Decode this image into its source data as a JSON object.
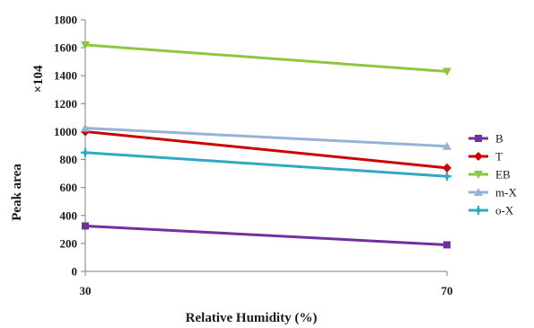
{
  "chart_data": {
    "type": "line",
    "x": [
      30,
      70
    ],
    "x_tick_labels": [
      "30",
      "70"
    ],
    "xlabel": "Relative Humidity (%)",
    "ylabel": "Peak area",
    "y_multiplier_label": "×104",
    "ylim": [
      0,
      1800
    ],
    "y_ticks": [
      0,
      200,
      400,
      600,
      800,
      1000,
      1200,
      1400,
      1600,
      1800
    ],
    "grid": false,
    "legend_position": "right",
    "series": [
      {
        "name": "B",
        "values": [
          325,
          190
        ],
        "color": "#7030a0",
        "marker": "square"
      },
      {
        "name": "T",
        "values": [
          1000,
          740
        ],
        "color": "#cc0000",
        "marker": "diamond"
      },
      {
        "name": "EB",
        "values": [
          1620,
          1430
        ],
        "color": "#8dc63f",
        "marker": "triangle-down"
      },
      {
        "name": "m-X",
        "values": [
          1025,
          895
        ],
        "color": "#95b3d7",
        "marker": "triangle-up"
      },
      {
        "name": "o-X",
        "values": [
          850,
          680
        ],
        "color": "#31a9c1",
        "marker": "star"
      }
    ]
  }
}
